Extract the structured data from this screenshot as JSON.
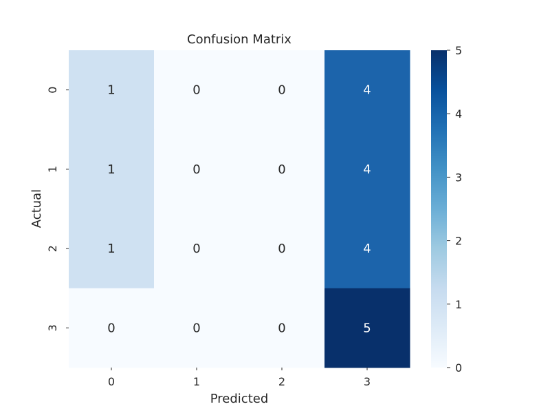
{
  "chart_data": {
    "type": "heatmap",
    "title": "Confusion Matrix",
    "xlabel": "Predicted",
    "ylabel": "Actual",
    "x_categories": [
      "0",
      "1",
      "2",
      "3"
    ],
    "y_categories": [
      "0",
      "1",
      "2",
      "3"
    ],
    "values": [
      [
        1,
        0,
        0,
        4
      ],
      [
        1,
        0,
        0,
        4
      ],
      [
        1,
        0,
        0,
        4
      ],
      [
        0,
        0,
        0,
        5
      ]
    ],
    "annotations": true,
    "colormap": "Blues",
    "colorbar": {
      "min": 0,
      "max": 5,
      "ticks": [
        "0",
        "1",
        "2",
        "3",
        "4",
        "5"
      ]
    },
    "colors": {
      "0": "#f7fbff",
      "1": "#cfe1f2",
      "4": "#1c64ab",
      "5": "#08306b",
      "text_dark": "#262626",
      "text_light": "#ffffff"
    }
  }
}
